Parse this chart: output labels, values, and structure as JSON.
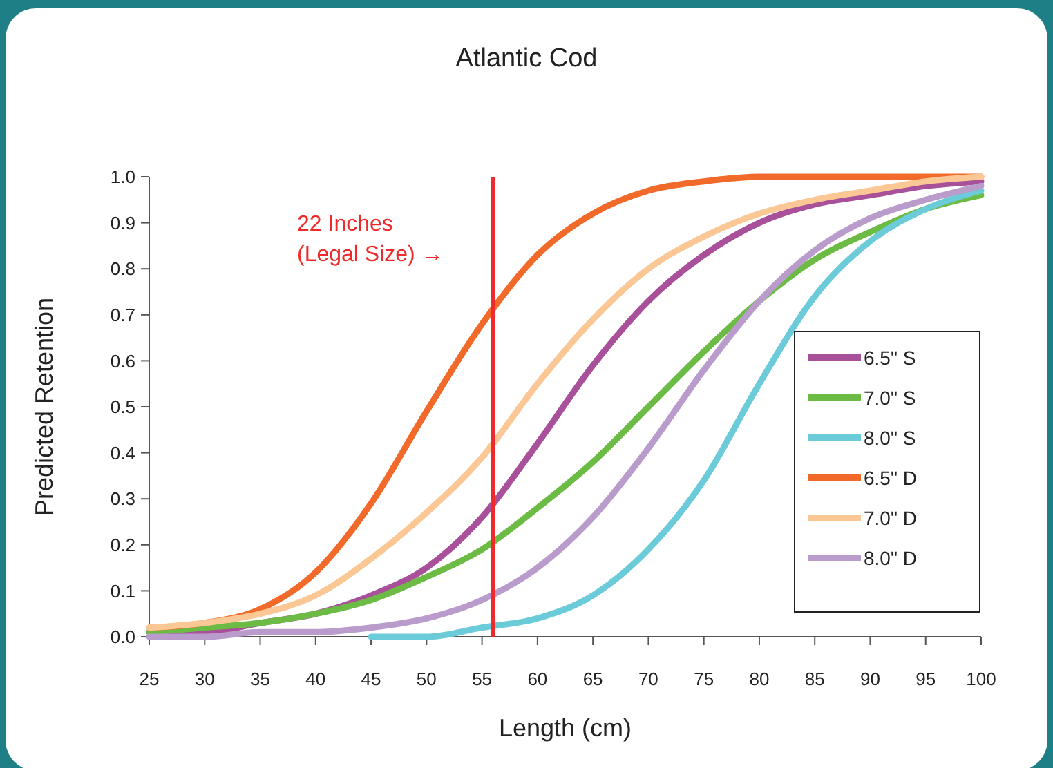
{
  "chart_data": {
    "type": "line",
    "title": "Atlantic Cod",
    "xlabel": "Length (cm)",
    "ylabel": "Predicted Retention",
    "x": [
      25,
      30,
      35,
      40,
      45,
      50,
      55,
      60,
      65,
      70,
      75,
      80,
      85,
      90,
      95,
      100
    ],
    "series": [
      {
        "name": "6.5\" S",
        "color": "#a8509a",
        "values": [
          0.01,
          0.01,
          0.03,
          0.05,
          0.09,
          0.15,
          0.26,
          0.42,
          0.59,
          0.73,
          0.83,
          0.9,
          0.94,
          0.96,
          0.98,
          0.99
        ]
      },
      {
        "name": "7.0\" S",
        "color": "#6cbb45",
        "values": [
          0.01,
          0.02,
          0.03,
          0.05,
          0.08,
          0.13,
          0.19,
          0.28,
          0.38,
          0.5,
          0.62,
          0.73,
          0.82,
          0.88,
          0.93,
          0.96
        ]
      },
      {
        "name": "8.0\" S",
        "color": "#6ccbd9",
        "values": [
          null,
          null,
          null,
          null,
          0,
          0,
          0.02,
          0.04,
          0.09,
          0.19,
          0.34,
          0.55,
          0.74,
          0.86,
          0.93,
          0.97
        ]
      },
      {
        "name": "6.5\" D",
        "color": "#f26a2a",
        "values": [
          0.02,
          0.03,
          0.06,
          0.14,
          0.29,
          0.49,
          0.68,
          0.83,
          0.92,
          0.97,
          0.99,
          1,
          1,
          1,
          1,
          1
        ]
      },
      {
        "name": "7.0\" D",
        "color": "#fbc795",
        "values": [
          0.02,
          0.03,
          0.05,
          0.09,
          0.17,
          0.27,
          0.39,
          0.55,
          0.69,
          0.8,
          0.87,
          0.92,
          0.95,
          0.97,
          0.99,
          1
        ]
      },
      {
        "name": "8.0\" D",
        "color": "#b99ccc",
        "values": [
          0,
          0,
          0.01,
          0.01,
          0.02,
          0.04,
          0.08,
          0.15,
          0.26,
          0.41,
          0.58,
          0.73,
          0.84,
          0.91,
          0.95,
          0.98
        ]
      }
    ],
    "xlim": [
      25,
      100
    ],
    "xticks": [
      25,
      30,
      35,
      40,
      45,
      50,
      55,
      60,
      65,
      70,
      75,
      80,
      85,
      90,
      95,
      100
    ],
    "ylim": [
      0,
      1
    ],
    "yticks": [
      {
        "value": 0,
        "label": "0.0"
      },
      {
        "value": 0.1,
        "label": "0.1"
      },
      {
        "value": 0.2,
        "label": "0.2"
      },
      {
        "value": 0.3,
        "label": "0.3"
      },
      {
        "value": 0.4,
        "label": "0.4"
      },
      {
        "value": 0.5,
        "label": "0.5"
      },
      {
        "value": 0.6,
        "label": "0.6"
      },
      {
        "value": 0.7,
        "label": "0.7"
      },
      {
        "value": 0.8,
        "label": "0.8"
      },
      {
        "value": 0.9,
        "label": "0.9"
      },
      {
        "value": 1,
        "label": "1.0"
      }
    ],
    "ref_lines": [
      {
        "axis": "x",
        "value": 56,
        "label": "22 Inches\n(Legal Size) →",
        "color": "#ee2a2a"
      }
    ],
    "legend": "right",
    "grid": false,
    "marker": "none",
    "line_style": "solid"
  }
}
